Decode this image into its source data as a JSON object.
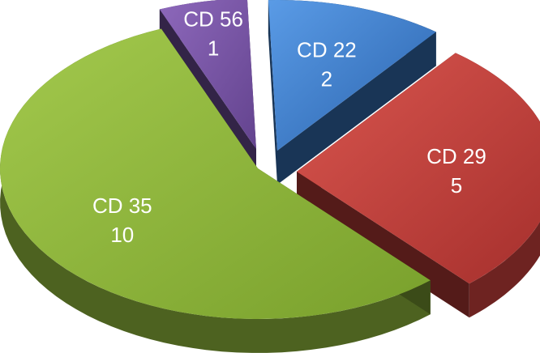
{
  "chart_data": {
    "type": "pie",
    "style": "3d-exploded",
    "title": "",
    "slices": [
      {
        "name": "CD 22",
        "value": 2,
        "color": "#3b7dcc"
      },
      {
        "name": "CD 29",
        "value": 5,
        "color": "#c8403c"
      },
      {
        "name": "CD 35",
        "value": 10,
        "color": "#8cb33a"
      },
      {
        "name": "CD 56",
        "value": 1,
        "color": "#7a55a8"
      }
    ]
  }
}
